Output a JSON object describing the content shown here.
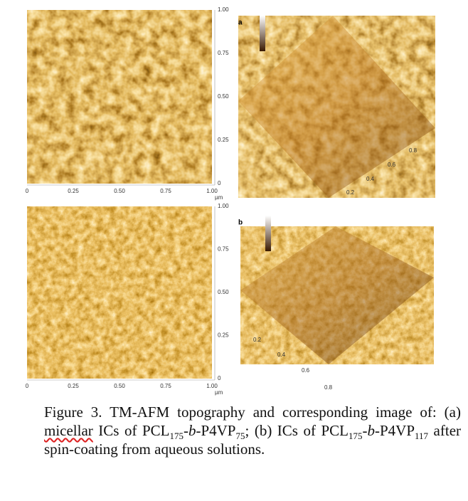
{
  "panels": [
    {
      "label": "a",
      "x_ticks": [
        "0",
        "0.25",
        "0.50",
        "0.75",
        "1.00"
      ],
      "y_ticks": [
        "0",
        "0.25",
        "0.50",
        "0.75",
        "1.00"
      ],
      "unit": "µm",
      "depth_ticks": [
        "0.2",
        "0.4",
        "0.6",
        "0.8"
      ]
    },
    {
      "label": "b",
      "x_ticks": [
        "0",
        "0.25",
        "0.50",
        "0.75",
        "1.00"
      ],
      "y_ticks": [
        "0",
        "0.25",
        "0.50",
        "0.75",
        "1.00"
      ],
      "unit": "µm",
      "depth_ticks": [
        "0.2",
        "0.4",
        "0.6",
        "0.8"
      ]
    }
  ],
  "caption": [
    "Figure 3. TM-AFM topography and corresponding image of: (a) ",
    "micellar",
    " ICs of PCL",
    "175",
    "-",
    "b",
    "-P4VP",
    "75",
    "; (b) ICs of PCL",
    "175",
    "-",
    "b",
    "-P4VP",
    "117",
    " after spin-coating from aqueous solutions."
  ]
}
